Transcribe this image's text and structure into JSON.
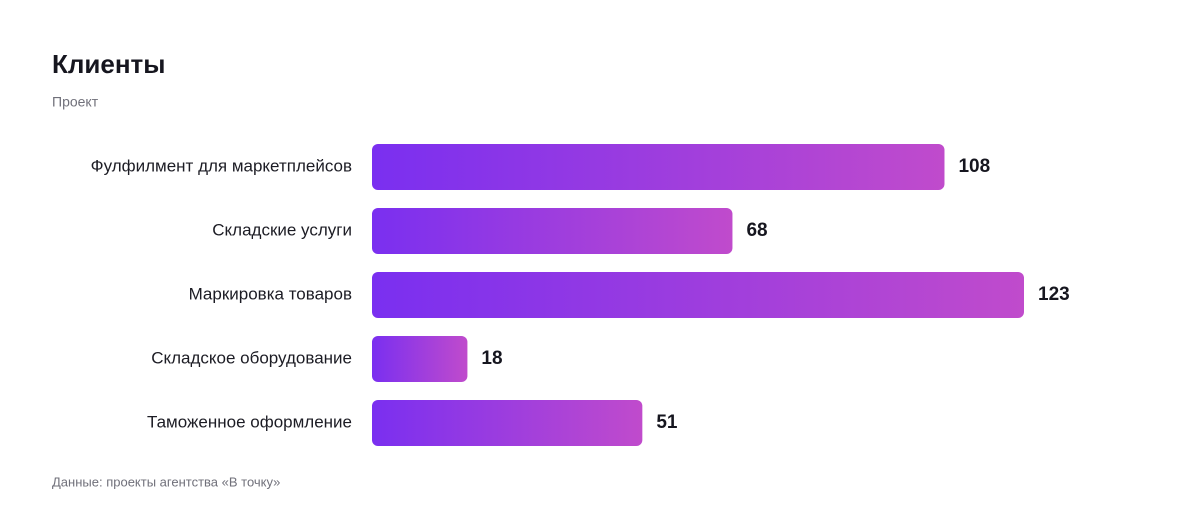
{
  "chart_data": {
    "type": "bar",
    "orientation": "horizontal",
    "title": "Клиенты",
    "subtitle": "Проект",
    "categories": [
      "Фулфилмент для маркетплейсов",
      "Складские услуги",
      "Маркировка товаров",
      "Складское оборудование",
      "Таможенное оформление"
    ],
    "values": [
      108,
      68,
      123,
      18,
      51
    ],
    "gradient": [
      "#7a2ff0",
      "#c04bcc"
    ],
    "source": "Данные: проекты агентства «В точку»"
  }
}
